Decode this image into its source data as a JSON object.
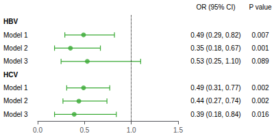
{
  "chart_data": {
    "type": "forest",
    "categories": [
      "HBV",
      "Model 1",
      "Model 2",
      "Model 3",
      "HCV",
      "Model 1",
      "Model 2",
      "Model 3"
    ],
    "values": [
      null,
      0.49,
      0.35,
      0.53,
      null,
      0.49,
      0.44,
      0.39
    ],
    "ci_lo": [
      null,
      0.29,
      0.18,
      0.25,
      null,
      0.31,
      0.27,
      0.18
    ],
    "ci_hi": [
      null,
      0.82,
      0.67,
      1.1,
      null,
      0.77,
      0.74,
      0.84
    ],
    "value_labels": [
      null,
      "0.49 (0.29, 0.82)",
      "0.35 (0.18, 0.67)",
      "0.53 (0.25, 1.10)",
      null,
      "0.49 (0.31, 0.77)",
      "0.44 (0.27, 0.74)",
      "0.39 (0.18, 0.84)"
    ],
    "p_values": [
      null,
      0.007,
      0.001,
      0.089,
      null,
      0.002,
      0.002,
      0.016
    ],
    "column_titles": [
      "OR (95% CI)",
      "P value"
    ],
    "reference_line": 1.0,
    "color": "#3aaa35",
    "marker": "circle",
    "xlim": [
      0,
      1.5
    ],
    "xticks": [
      {
        "value": 0,
        "label": "0.0"
      },
      0.5,
      {
        "value": 1,
        "label": "1.0"
      },
      1.5
    ],
    "grid": false
  }
}
